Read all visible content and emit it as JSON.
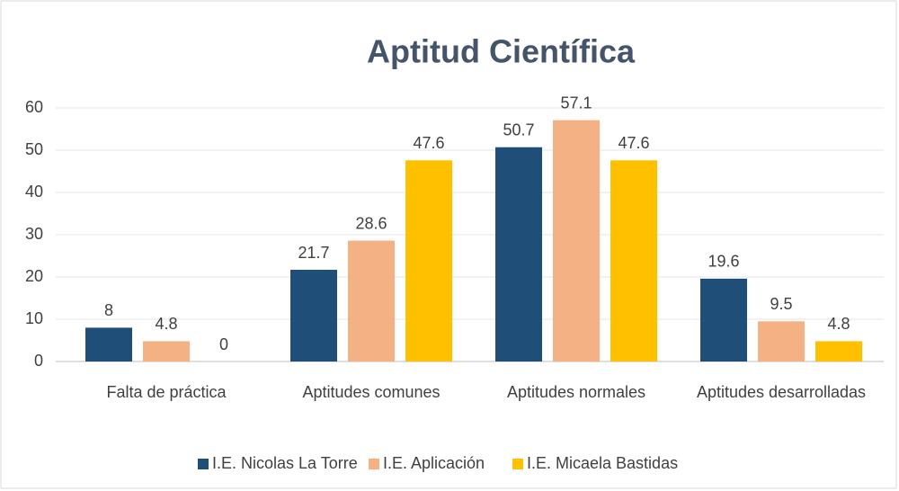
{
  "chart_data": {
    "type": "bar",
    "title": "Aptitud Científica",
    "categories": [
      "Falta de práctica",
      "Aptitudes comunes",
      "Aptitudes normales",
      "Aptitudes desarrolladas"
    ],
    "series": [
      {
        "name": "I.E. Nicolas La Torre",
        "color": "#1f4e79",
        "values": [
          8,
          21.7,
          50.7,
          19.6
        ]
      },
      {
        "name": "I.E. Aplicación",
        "color": "#f4b183",
        "values": [
          4.8,
          28.6,
          57.1,
          9.5
        ]
      },
      {
        "name": "I.E. Micaela Bastidas",
        "color": "#ffc000",
        "values": [
          0,
          47.6,
          47.6,
          4.8
        ]
      }
    ],
    "ylim": [
      0,
      60
    ],
    "yticks": [
      0,
      10,
      20,
      30,
      40,
      50,
      60
    ],
    "grid": true,
    "legend": "bottom"
  }
}
